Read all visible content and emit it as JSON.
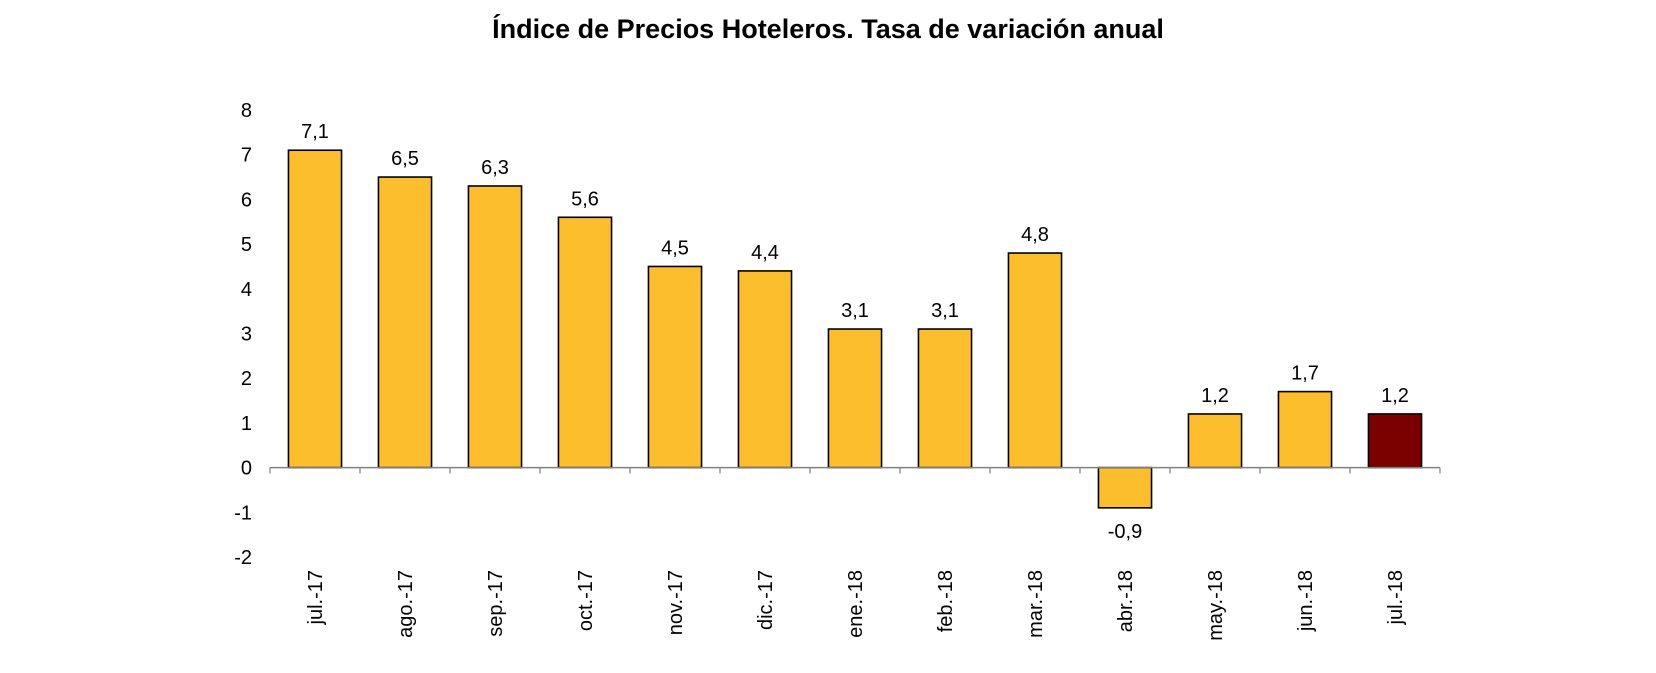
{
  "chart_data": {
    "type": "bar",
    "title": "Índice de Precios Hoteleros. Tasa de variación anual",
    "xlabel": "",
    "ylabel": "",
    "categories": [
      "jul.-17",
      "ago.-17",
      "sep.-17",
      "oct.-17",
      "nov.-17",
      "dic.-17",
      "ene.-18",
      "feb.-18",
      "mar.-18",
      "abr.-18",
      "may.-18",
      "jun.-18",
      "jul.-18"
    ],
    "values": [
      7.1,
      6.5,
      6.3,
      5.6,
      4.5,
      4.4,
      3.1,
      3.1,
      4.8,
      -0.9,
      1.2,
      1.7,
      1.2
    ],
    "data_labels": [
      "7,1",
      "6,5",
      "6,3",
      "5,6",
      "4,5",
      "4,4",
      "3,1",
      "3,1",
      "4,8",
      "-0,9",
      "1,2",
      "1,7",
      "1,2"
    ],
    "ylim": [
      -2,
      8
    ],
    "yticks": [
      8,
      7,
      6,
      5,
      4,
      3,
      2,
      1,
      0,
      -1,
      -2
    ],
    "grid": false,
    "legend": "none",
    "highlight_index": 12,
    "colors": {
      "bar": "#FDBE2E",
      "highlight": "#7B0000",
      "outline": "#000000",
      "axis": "#808080"
    }
  }
}
